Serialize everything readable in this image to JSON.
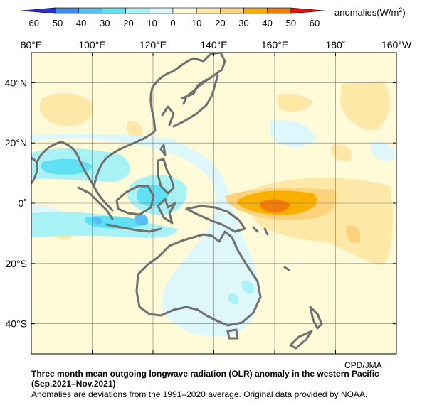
{
  "legend": {
    "unit_label": "anomalies(W/m",
    "unit_sup": "2",
    "unit_suffix": ")",
    "ticks": [
      "−60",
      "−50",
      "−40",
      "−30",
      "−20",
      "−10",
      "0",
      "10",
      "20",
      "30",
      "40",
      "50",
      "60"
    ],
    "colors": [
      "#2a2fe0",
      "#3a8cf3",
      "#56bdf6",
      "#5fe0f4",
      "#a8f2f5",
      "#ddf7fb",
      "#fffbd8",
      "#fde8a8",
      "#fdd27a",
      "#fbb000",
      "#f57a00",
      "#ee1100"
    ]
  },
  "map": {
    "lon_labels": [
      "80°E",
      "100°E",
      "120°E",
      "140°E",
      "160°E",
      "180˚",
      "160°W"
    ],
    "lat_labels": [
      "40°N",
      "20°N",
      "0˚",
      "20°S",
      "40°S"
    ],
    "lon_range": [
      80,
      200
    ],
    "lat_range": [
      -50,
      50
    ],
    "coastline_color": "#707070",
    "grid_color": "#7a7a7a"
  },
  "credit": "CPD/JMA",
  "caption": {
    "title": "Three month mean outgoing longwave radiation (OLR) anomaly in the western Pacific",
    "period": "(Sep.2021–Nov.2021)",
    "note": "Anomalies are deviations from the 1991–2020 average. Original data provided by NOAA."
  }
}
